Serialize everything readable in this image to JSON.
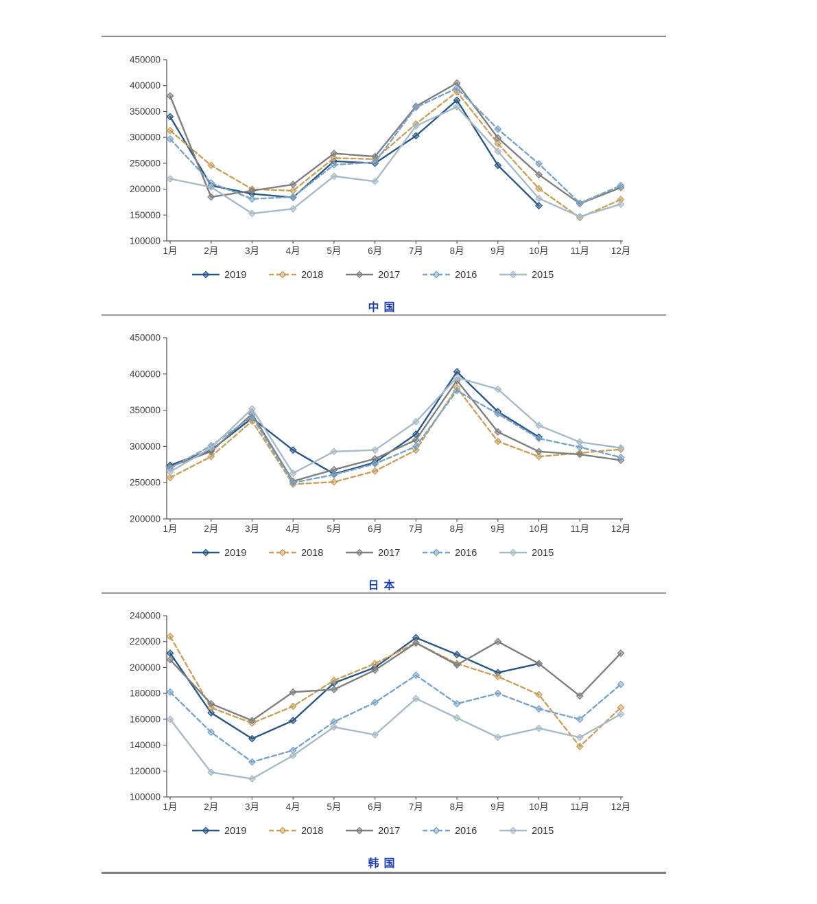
{
  "page": {
    "background": "#ffffff",
    "rule_color": "#8c8c8c",
    "axis_color": "#595959",
    "label_color": "#404040"
  },
  "chart_data": [
    {
      "type": "line",
      "title": "中国",
      "title_color": "#1e3fa7",
      "x": [
        "1月",
        "2月",
        "3月",
        "4月",
        "5月",
        "6月",
        "7月",
        "8月",
        "9月",
        "10月",
        "11月",
        "12月"
      ],
      "ylim": [
        100000,
        450000
      ],
      "ytick_step": 50000,
      "grid": false,
      "legend_position": "bottom",
      "series": [
        {
          "name": "2019",
          "color": "#2a5783",
          "dash": "solid",
          "values": [
            340000,
            207000,
            191000,
            184000,
            254000,
            250000,
            303000,
            372000,
            246000,
            168000,
            null,
            null
          ]
        },
        {
          "name": "2018",
          "color": "#c6a05f",
          "dash": "dashed",
          "values": [
            313000,
            246000,
            200000,
            197000,
            260000,
            258000,
            326000,
            388000,
            288000,
            201000,
            145000,
            180000
          ]
        },
        {
          "name": "2017",
          "color": "#7f7f7f",
          "dash": "solid",
          "values": [
            380000,
            185000,
            197000,
            209000,
            269000,
            263000,
            360000,
            405000,
            299000,
            228000,
            172000,
            203000
          ]
        },
        {
          "name": "2016",
          "color": "#7ca3c4",
          "dash": "dashed",
          "values": [
            297000,
            212000,
            181000,
            185000,
            247000,
            252000,
            358000,
            395000,
            316000,
            249000,
            173000,
            207000
          ]
        },
        {
          "name": "2015",
          "color": "#a7bac6",
          "dash": "solid",
          "values": [
            220000,
            204000,
            153000,
            162000,
            225000,
            215000,
            322000,
            359000,
            273000,
            182000,
            147000,
            171000
          ]
        }
      ]
    },
    {
      "type": "line",
      "title": "日本",
      "title_color": "#1e3fa7",
      "x": [
        "1月",
        "2月",
        "3月",
        "4月",
        "5月",
        "6月",
        "7月",
        "8月",
        "9月",
        "10月",
        "11月",
        "12月"
      ],
      "ylim": [
        200000,
        450000
      ],
      "ytick_step": 50000,
      "grid": false,
      "legend_position": "bottom",
      "series": [
        {
          "name": "2019",
          "color": "#2a5783",
          "dash": "solid",
          "values": [
            274000,
            295000,
            339000,
            295000,
            262000,
            278000,
            317000,
            403000,
            348000,
            313000,
            null,
            null
          ]
        },
        {
          "name": "2018",
          "color": "#c6a05f",
          "dash": "dashed",
          "values": [
            257000,
            286000,
            335000,
            248000,
            251000,
            266000,
            295000,
            381000,
            307000,
            286000,
            291000,
            296000
          ]
        },
        {
          "name": "2017",
          "color": "#7f7f7f",
          "dash": "solid",
          "values": [
            272000,
            293000,
            345000,
            252000,
            268000,
            283000,
            309000,
            391000,
            320000,
            293000,
            289000,
            281000
          ]
        },
        {
          "name": "2016",
          "color": "#7ca3c4",
          "dash": "dashed",
          "values": [
            270000,
            301000,
            341000,
            250000,
            261000,
            276000,
            300000,
            377000,
            345000,
            311000,
            299000,
            285000
          ]
        },
        {
          "name": "2015",
          "color": "#a7bac6",
          "dash": "solid",
          "values": [
            265000,
            298000,
            352000,
            263000,
            293000,
            295000,
            334000,
            395000,
            379000,
            329000,
            306000,
            298000
          ]
        }
      ]
    },
    {
      "type": "line",
      "title": "韩国",
      "title_color": "#1e3fa7",
      "x": [
        "1月",
        "2月",
        "3月",
        "4月",
        "5月",
        "6月",
        "7月",
        "8月",
        "9月",
        "10月",
        "11月",
        "12月"
      ],
      "ylim": [
        100000,
        240000
      ],
      "ytick_step": 20000,
      "grid": false,
      "legend_position": "bottom",
      "series": [
        {
          "name": "2019",
          "color": "#2a5783",
          "dash": "solid",
          "values": [
            211000,
            165000,
            145000,
            159000,
            188000,
            200000,
            223000,
            210000,
            196000,
            203000,
            null,
            null
          ]
        },
        {
          "name": "2018",
          "color": "#c6a05f",
          "dash": "dashed",
          "values": [
            224000,
            169000,
            157000,
            170000,
            190000,
            203000,
            219000,
            203000,
            193000,
            179000,
            139000,
            169000
          ]
        },
        {
          "name": "2017",
          "color": "#7f7f7f",
          "dash": "solid",
          "values": [
            206000,
            172000,
            159000,
            181000,
            183000,
            198000,
            219000,
            202000,
            220000,
            203000,
            178000,
            211000
          ]
        },
        {
          "name": "2016",
          "color": "#7ca3c4",
          "dash": "dashed",
          "values": [
            181000,
            150000,
            127000,
            136000,
            158000,
            173000,
            194000,
            172000,
            180000,
            168000,
            160000,
            187000
          ]
        },
        {
          "name": "2015",
          "color": "#a7bac6",
          "dash": "solid",
          "values": [
            160000,
            119000,
            114000,
            132000,
            154000,
            148000,
            176000,
            161000,
            146000,
            153000,
            146000,
            164000
          ]
        }
      ]
    }
  ]
}
